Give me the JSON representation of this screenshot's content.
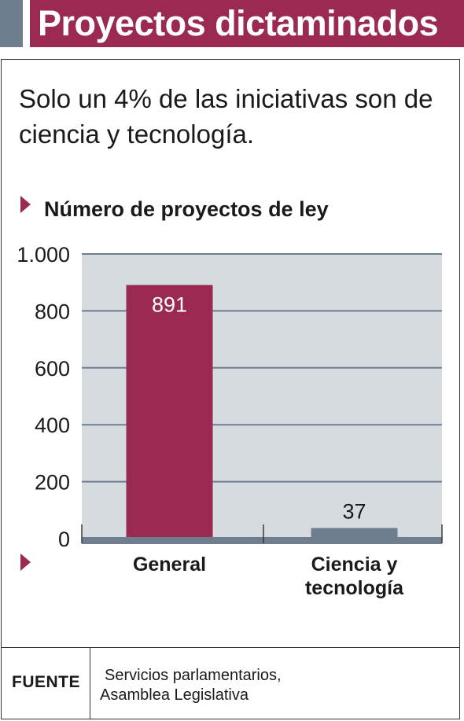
{
  "header": {
    "title": "Proyectos dictaminados"
  },
  "subtitle": "Solo un 4% de las iniciativas son de ciencia y tecnología.",
  "chart_data": {
    "type": "bar",
    "title": "Número de proyectos de ley",
    "categories": [
      "General",
      "Ciencia y tecnología"
    ],
    "category_lines": [
      [
        "General"
      ],
      [
        "Ciencia y",
        "tecnología"
      ]
    ],
    "values": [
      891,
      37
    ],
    "value_labels": [
      "891",
      "37"
    ],
    "bar_colors": [
      "#9b2a52",
      "#6e7e8e"
    ],
    "ylim": [
      0,
      1000
    ],
    "yticks": [
      0,
      200,
      400,
      600,
      800,
      1000
    ],
    "ytick_labels": [
      "0",
      "200",
      "400",
      "600",
      "800",
      "1.000"
    ],
    "grid": true,
    "plot_background": "#d6dbe0",
    "grid_color": "#6e7e8e",
    "xlabel": "",
    "ylabel": ""
  },
  "footer": {
    "source_label": "FUENTE",
    "source_lines": [
      "Servicios parlamentarios,",
      "Asamblea Legislativa"
    ]
  },
  "colors": {
    "accent": "#9b2a52",
    "slate": "#6e7e8e"
  }
}
